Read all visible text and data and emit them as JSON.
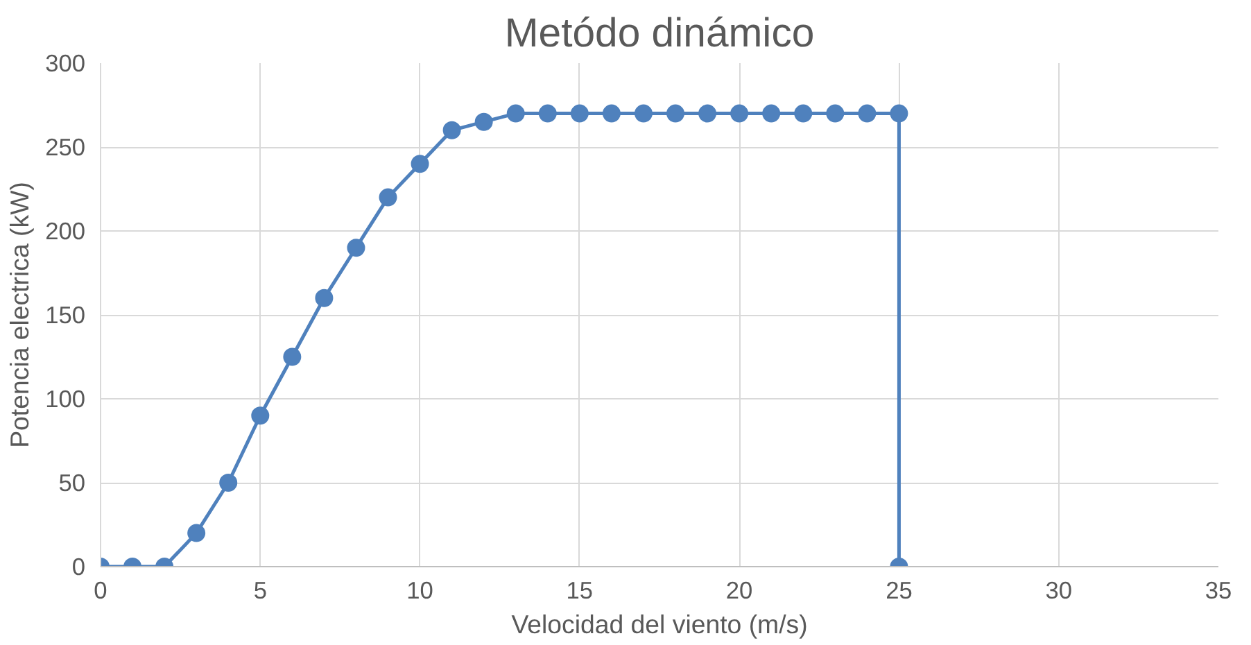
{
  "chart_data": {
    "type": "line",
    "title": "Metódo dinámico",
    "xlabel": "Velocidad del viento (m/s)",
    "ylabel": "Potencia electrica (kW)",
    "x": [
      0,
      1,
      2,
      3,
      4,
      5,
      6,
      7,
      8,
      9,
      10,
      11,
      12,
      13,
      14,
      15,
      16,
      17,
      18,
      19,
      20,
      21,
      22,
      23,
      24,
      25,
      25
    ],
    "series": [
      {
        "color": "#4f81bd",
        "values": [
          0,
          0,
          0,
          20,
          50,
          90,
          125,
          160,
          190,
          220,
          240,
          260,
          265,
          270,
          270,
          270,
          270,
          270,
          270,
          270,
          270,
          270,
          270,
          270,
          270,
          270,
          0
        ]
      }
    ],
    "xlim": [
      0,
      35
    ],
    "xticks": [
      0,
      5,
      10,
      15,
      20,
      25,
      30,
      35
    ],
    "ylim": [
      0,
      300
    ],
    "yticks": [
      0,
      50,
      100,
      150,
      200,
      250,
      300
    ],
    "grid": true,
    "marker": "circle",
    "line_style": "solid"
  }
}
